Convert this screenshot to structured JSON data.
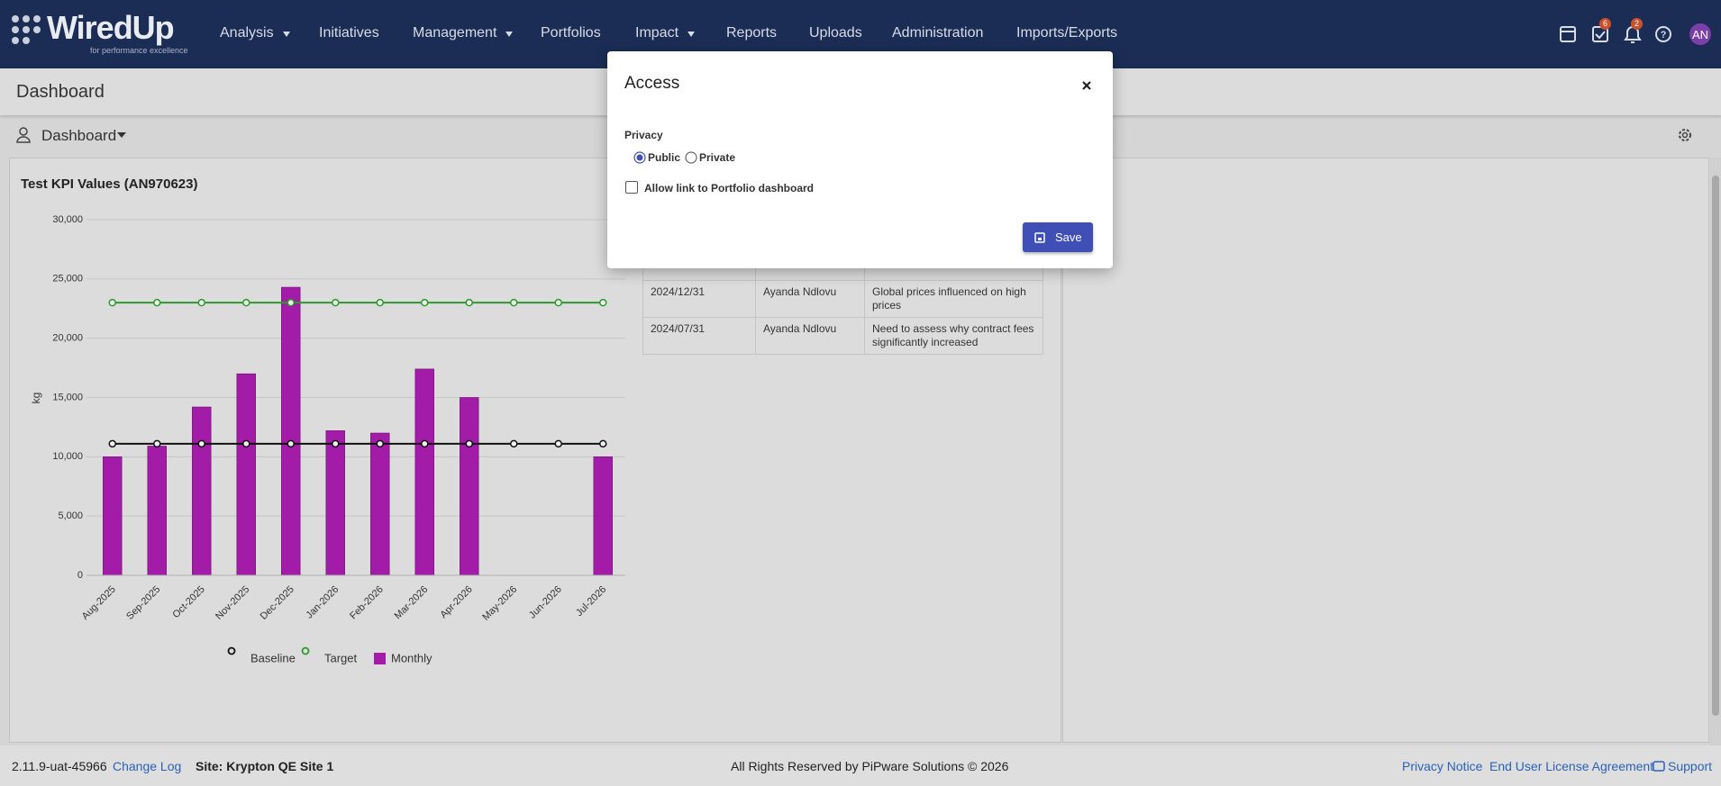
{
  "header": {
    "logo": "WiredUp",
    "tagline": "for performance excellence",
    "nav": [
      "Analysis",
      "Initiatives",
      "Management",
      "Portfolios",
      "Impact",
      "Reports",
      "Uploads",
      "Administration",
      "Imports/Exports"
    ],
    "task_badge": 6,
    "notification_badge": 2,
    "avatar": "AN"
  },
  "page": {
    "title": "Dashboard",
    "selector": "Dashboard"
  },
  "chart_data": {
    "type": "bar",
    "title": "Test KPI Values (AN970623)",
    "y_label": "kg",
    "categories": [
      "Aug-2025",
      "Sep-2025",
      "Oct-2025",
      "Nov-2025",
      "Dec-2025",
      "Jan-2026",
      "Feb-2026",
      "Mar-2026",
      "Apr-2026",
      "May-2026",
      "Jun-2026",
      "Jul-2026"
    ],
    "series": [
      {
        "name": "Baseline",
        "type": "line",
        "color": "#111111",
        "values": [
          11100,
          11100,
          11100,
          11100,
          11100,
          11100,
          11100,
          11100,
          11100,
          11100,
          11100,
          11100
        ]
      },
      {
        "name": "Target",
        "type": "line",
        "color": "#2e9a2e",
        "values": [
          23000,
          23000,
          23000,
          23000,
          23000,
          23000,
          23000,
          23000,
          23000,
          23000,
          23000,
          23000
        ]
      },
      {
        "name": "Monthly",
        "type": "bar",
        "color": "#a21ca7",
        "values": [
          10000,
          10900,
          14200,
          17000,
          24300,
          12200,
          12000,
          17400,
          15000,
          null,
          null,
          10000
        ]
      }
    ],
    "ylim": [
      0,
      30000
    ],
    "yticks": [
      0,
      {
        "value": 5000,
        "label": "5,000"
      },
      {
        "value": 10000,
        "label": "10,000"
      },
      {
        "value": 15000,
        "label": "15,000"
      },
      {
        "value": 20000,
        "label": "20,000"
      },
      {
        "value": 25000,
        "label": "25,000"
      },
      {
        "value": 30000,
        "label": "30,000"
      }
    ],
    "grid": true
  },
  "table": {
    "rows": [
      [
        "2024/12/31",
        "Ayanda Ndlovu",
        "Global prices influenced on high prices"
      ],
      [
        "2024/07/31",
        "Ayanda Ndlovu",
        "Need to assess why contract fees significantly increased"
      ]
    ]
  },
  "modal": {
    "title": "Access",
    "privacy_label": "Privacy",
    "options": [
      "Public",
      "Private"
    ],
    "checkbox": "Allow link to Portfolio dashboard",
    "button": "Save"
  },
  "footer": {
    "version": "2.11.9-uat-45966",
    "changelog": "Change Log",
    "site": "Site: Krypton QE Site 1",
    "copyright": "All Rights Reserved by PiPware Solutions © 2026",
    "links": [
      "Privacy Notice",
      "End User License Agreement",
      "Support"
    ]
  }
}
